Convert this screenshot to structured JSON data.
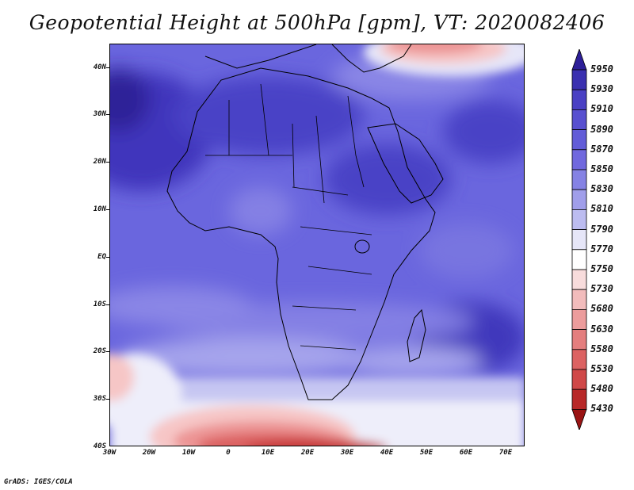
{
  "title": "Geopotential Height at 500hPa [gpm], VT: 2020082406",
  "credit": "GrADS: IGES/COLA",
  "map": {
    "variable": "Geopotential Height",
    "level": "500hPa",
    "units": "gpm",
    "valid_time": "2020082406",
    "lon_range": [
      -30,
      75
    ],
    "lat_range": [
      -40,
      45
    ],
    "lat_labels": [
      "40N",
      "30N",
      "20N",
      "10N",
      "EQ",
      "10S",
      "20S",
      "30S",
      "40S"
    ],
    "lon_labels": [
      "30W",
      "20W",
      "10W",
      "0",
      "10E",
      "20E",
      "30E",
      "40E",
      "50E",
      "60E",
      "70E"
    ],
    "land_color": "#6c68e0",
    "ocean_color": "#5b57d8"
  },
  "colorbar": {
    "levels": [
      "5950",
      "5930",
      "5910",
      "5890",
      "5870",
      "5850",
      "5830",
      "5810",
      "5790",
      "5770",
      "5750",
      "5730",
      "5680",
      "5630",
      "5580",
      "5530",
      "5480",
      "5430"
    ],
    "colors": [
      "#2d1f98",
      "#3a30b0",
      "#4a40c4",
      "#5850d0",
      "#625cd8",
      "#7068de",
      "#8582e4",
      "#a09eea",
      "#bcbcf0",
      "#e6e6f8",
      "#ffffff",
      "#f8dcdc",
      "#f2bcbc",
      "#ec9c9c",
      "#e47e7e",
      "#dc6262",
      "#d04848",
      "#b82828",
      "#9a1414"
    ]
  }
}
